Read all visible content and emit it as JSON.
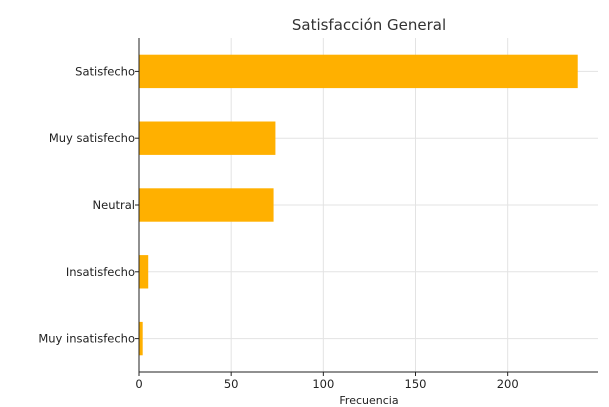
{
  "chart_data": {
    "type": "bar",
    "orientation": "horizontal",
    "title": "Satisfacción General",
    "xlabel": "Frecuencia",
    "ylabel": "",
    "categories": [
      "Satisfecho",
      "Muy satisfecho",
      "Neutral",
      "Insatisfecho",
      "Muy insatisfecho"
    ],
    "values": [
      238,
      74,
      73,
      5,
      2
    ],
    "xlim": [
      0,
      249
    ],
    "xticks": [
      0,
      50,
      100,
      150,
      200
    ],
    "grid": true,
    "bar_color": "#FFB000"
  }
}
